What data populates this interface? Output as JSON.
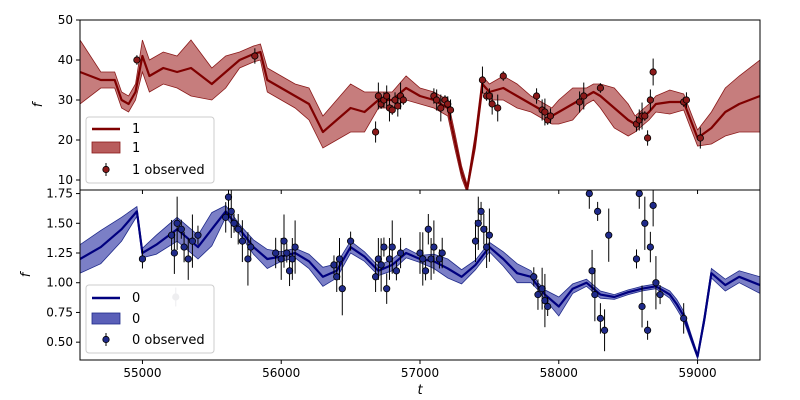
{
  "chart_data": [
    {
      "type": "line",
      "panel": "top",
      "ylabel": "f",
      "xlabel": "",
      "xlim": [
        54550,
        59450
      ],
      "ylim": [
        7.5,
        50
      ],
      "xticks": [
        55000,
        56000,
        57000,
        58000,
        59000
      ],
      "yticks": [
        10,
        20,
        30,
        40,
        50
      ],
      "legend": "lower-left",
      "grid": false,
      "colors": {
        "line": "#7f0000",
        "band": "#b85c5c",
        "marker": "#8b1a1a"
      },
      "legend_labels": {
        "line": "1",
        "band": "1",
        "observed": "1 observed"
      },
      "series": [
        {
          "name": "1",
          "kind": "model",
          "x": [
            54550,
            54700,
            54800,
            54850,
            54900,
            54950,
            55000,
            55050,
            55150,
            55250,
            55350,
            55500,
            55600,
            55700,
            55800,
            55850,
            55900,
            56000,
            56100,
            56200,
            56300,
            56400,
            56500,
            56600,
            56700,
            56800,
            56900,
            57000,
            57100,
            57200,
            57250,
            57300,
            57340,
            57400,
            57450,
            57500,
            57600,
            57700,
            57800,
            57900,
            57950,
            58000,
            58100,
            58200,
            58250,
            58300,
            58400,
            58500,
            58550,
            58600,
            58650,
            58700,
            58800,
            58900,
            58950,
            59000,
            59100,
            59200,
            59300,
            59450
          ],
          "y": [
            37,
            35,
            35,
            30,
            29,
            32,
            41,
            36,
            38,
            37,
            38,
            34,
            37,
            40,
            41.5,
            42,
            35,
            33,
            31,
            29,
            22,
            25,
            28,
            27,
            30,
            30,
            33,
            31,
            30,
            28,
            20,
            12,
            7.8,
            20,
            34,
            32,
            33,
            31,
            29,
            27,
            26,
            27,
            29,
            31,
            32,
            31,
            28,
            25,
            24,
            25.5,
            27,
            29,
            29.5,
            29.5,
            25,
            20.5,
            23,
            27,
            29,
            31
          ],
          "band": [
            8,
            2,
            2,
            2,
            2,
            2,
            4,
            4,
            4,
            4,
            7,
            4,
            4,
            2,
            2,
            2,
            3,
            3,
            3,
            4,
            4,
            5,
            6,
            5,
            2,
            2,
            3,
            2,
            2,
            2,
            2,
            1.5,
            1,
            2,
            2,
            2,
            3,
            3,
            2,
            2,
            2,
            3,
            4,
            2,
            2,
            3,
            5,
            4,
            2,
            2,
            2,
            2,
            3,
            2,
            2,
            2,
            4,
            6,
            7,
            9
          ]
        },
        {
          "name": "1 observed",
          "kind": "points",
          "x": [
            54960,
            55810,
            56680,
            56700,
            56720,
            56740,
            56760,
            56780,
            56800,
            56820,
            56840,
            56860,
            56880,
            57100,
            57120,
            57150,
            57180,
            57200,
            57220,
            57450,
            57480,
            57500,
            57520,
            57560,
            57600,
            57840,
            57880,
            57900,
            57920,
            57940,
            58150,
            58180,
            58300,
            58560,
            58580,
            58600,
            58620,
            58640,
            58660,
            58680,
            58900,
            58920,
            59020
          ],
          "y": [
            40,
            41,
            22,
            31,
            29,
            30,
            31,
            28,
            27.5,
            30,
            28.5,
            31,
            30,
            31,
            30,
            28,
            30,
            29,
            27.5,
            35,
            31,
            31,
            29,
            28,
            36,
            31,
            27.5,
            27,
            25,
            26,
            29.5,
            31,
            33,
            24,
            25,
            26,
            26,
            20.5,
            30,
            37,
            29.5,
            30,
            20.5
          ]
        }
      ]
    },
    {
      "type": "line",
      "panel": "bottom",
      "ylabel": "f",
      "xlabel": "t",
      "xlim": [
        54550,
        59450
      ],
      "ylim": [
        0.35,
        1.78
      ],
      "xticks": [
        55000,
        56000,
        57000,
        58000,
        59000
      ],
      "yticks": [
        0.5,
        0.75,
        1.0,
        1.25,
        1.5,
        1.75
      ],
      "xtick_labels": [
        "55000",
        "56000",
        "57000",
        "58000",
        "59000"
      ],
      "ytick_labels": [
        "0.50",
        "0.75",
        "1.00",
        "1.25",
        "1.50",
        "1.75"
      ],
      "legend": "lower-left",
      "grid": false,
      "colors": {
        "line": "#00007f",
        "band": "#5a5fb8",
        "marker": "#1f2a8a",
        "outlier": "#8a8a99"
      },
      "legend_labels": {
        "line": "0",
        "band": "0",
        "observed": "0 observed"
      },
      "series": [
        {
          "name": "0",
          "kind": "model",
          "x": [
            54550,
            54700,
            54850,
            54960,
            55000,
            55100,
            55250,
            55400,
            55500,
            55600,
            55700,
            55800,
            55900,
            56000,
            56100,
            56200,
            56300,
            56400,
            56500,
            56600,
            56700,
            56800,
            56900,
            57000,
            57100,
            57200,
            57300,
            57400,
            57500,
            57600,
            57700,
            57800,
            57850,
            57900,
            58000,
            58100,
            58200,
            58300,
            58400,
            58500,
            58600,
            58700,
            58800,
            58850,
            58900,
            58950,
            59000,
            59050,
            59100,
            59200,
            59300,
            59450
          ],
          "y": [
            1.2,
            1.3,
            1.45,
            1.6,
            1.25,
            1.32,
            1.45,
            1.3,
            1.45,
            1.6,
            1.45,
            1.3,
            1.2,
            1.22,
            1.25,
            1.18,
            1.05,
            1.1,
            1.3,
            1.22,
            1.1,
            1.15,
            1.25,
            1.2,
            1.18,
            1.12,
            1.05,
            1.15,
            1.3,
            1.2,
            1.08,
            1.05,
            0.97,
            0.9,
            0.8,
            0.95,
            1.0,
            0.9,
            0.88,
            0.92,
            0.95,
            0.97,
            0.9,
            0.82,
            0.72,
            0.55,
            0.38,
            0.7,
            1.08,
            0.98,
            1.05,
            0.98
          ],
          "band": [
            0.12,
            0.14,
            0.1,
            0.04,
            0.04,
            0.08,
            0.1,
            0.1,
            0.14,
            0.05,
            0.04,
            0.06,
            0.08,
            0.04,
            0.04,
            0.06,
            0.08,
            0.06,
            0.05,
            0.04,
            0.04,
            0.05,
            0.04,
            0.03,
            0.06,
            0.08,
            0.06,
            0.04,
            0.04,
            0.06,
            0.08,
            0.05,
            0.03,
            0.04,
            0.08,
            0.04,
            0.03,
            0.03,
            0.02,
            0.02,
            0.02,
            0.02,
            0.03,
            0.04,
            0.04,
            0.03,
            0.02,
            0.04,
            0.04,
            0.05,
            0.05,
            0.07
          ]
        },
        {
          "name": "0 observed",
          "kind": "points",
          "x": [
            55000,
            55210,
            55230,
            55250,
            55280,
            55300,
            55330,
            55360,
            55400,
            55600,
            55620,
            55640,
            55660,
            55690,
            55720,
            55760,
            55780,
            55960,
            56000,
            56020,
            56040,
            56060,
            56080,
            56100,
            56380,
            56400,
            56420,
            56440,
            56500,
            56680,
            56700,
            56720,
            56740,
            56760,
            56780,
            56800,
            56830,
            56860,
            57000,
            57020,
            57040,
            57060,
            57080,
            57100,
            57140,
            57160,
            57400,
            57420,
            57440,
            57460,
            57480,
            57500,
            57820,
            57850,
            57880,
            57900,
            57920,
            58220,
            58240,
            58260,
            58280,
            58300,
            58330,
            58360,
            58560,
            58580,
            58600,
            58620,
            58640,
            58660,
            58680,
            58700,
            58730,
            58900
          ],
          "y": [
            1.2,
            1.4,
            1.25,
            1.5,
            1.45,
            1.3,
            1.2,
            1.35,
            1.4,
            1.55,
            1.72,
            1.6,
            1.5,
            1.45,
            1.35,
            1.2,
            1.3,
            1.25,
            1.2,
            1.35,
            1.25,
            1.1,
            1.2,
            1.3,
            1.15,
            1.05,
            1.2,
            0.95,
            1.35,
            1.05,
            1.2,
            1.15,
            1.3,
            0.95,
            1.2,
            1.3,
            1.1,
            1.25,
            1.25,
            1.2,
            1.1,
            1.45,
            1.2,
            1.3,
            1.2,
            1.25,
            1.35,
            1.5,
            1.6,
            1.45,
            1.3,
            1.4,
            1.05,
            0.9,
            0.95,
            0.85,
            0.8,
            1.75,
            1.1,
            0.9,
            1.6,
            0.7,
            0.6,
            1.4,
            1.2,
            1.75,
            0.8,
            1.5,
            0.6,
            1.3,
            1.65,
            1.0,
            0.9,
            0.7
          ]
        },
        {
          "name": "outlier",
          "kind": "points",
          "x": [
            55240
          ],
          "y": [
            0.88
          ]
        }
      ]
    }
  ]
}
